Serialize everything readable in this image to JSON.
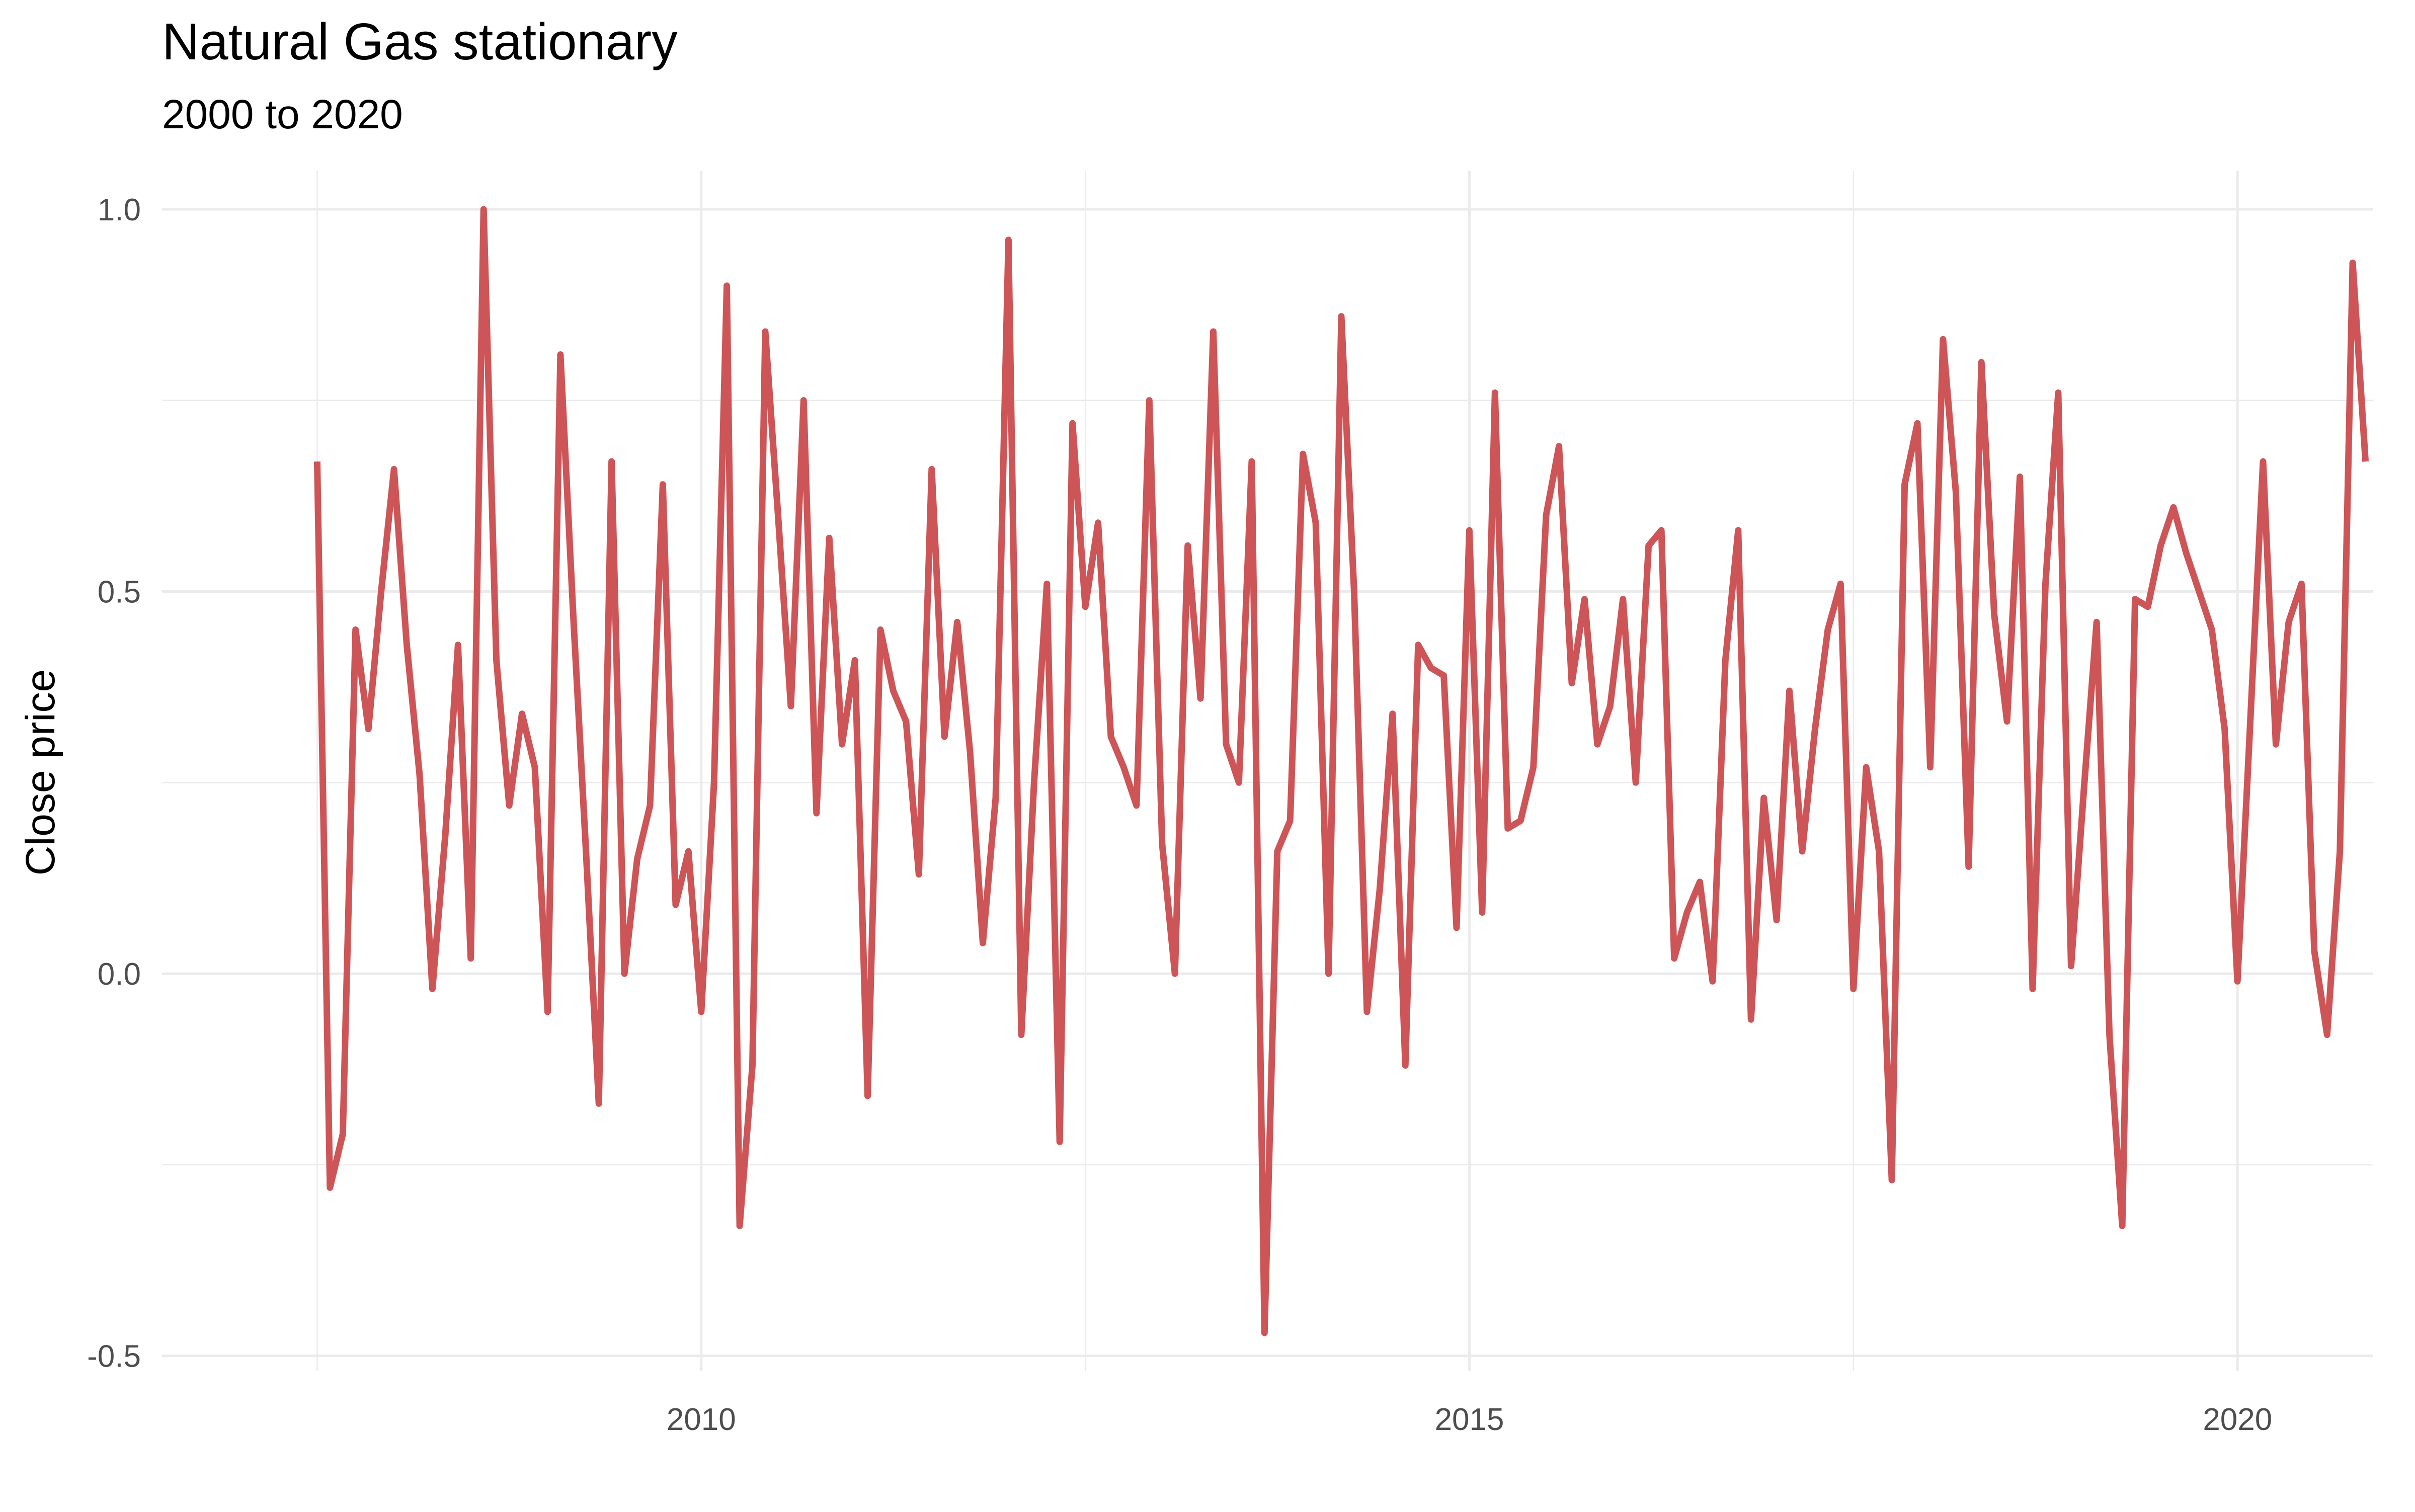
{
  "title": "Natural Gas stationary",
  "subtitle": "2000 to 2020",
  "chart_data": {
    "type": "line",
    "title": "Natural Gas stationary",
    "subtitle": "2000 to 2020",
    "xlabel": "",
    "ylabel": "Close price",
    "xlim": [
      2006.49,
      2020.88
    ],
    "ylim": [
      -0.52,
      1.05
    ],
    "x_ticks": [
      2010,
      2015,
      2020
    ],
    "x_tick_labels": [
      "2010",
      "2015",
      "2020"
    ],
    "y_ticks": [
      -0.5,
      0.0,
      0.5,
      1.0
    ],
    "y_tick_labels": [
      "-0.5",
      "0.0",
      "0.5",
      "1.0"
    ],
    "grid": true,
    "legend": "none",
    "line_color": "#cd5557",
    "x_start": 2007.5,
    "x_step": 0.08333,
    "values": [
      0.67,
      -0.28,
      -0.21,
      0.45,
      0.32,
      0.5,
      0.66,
      0.43,
      0.26,
      -0.02,
      0.18,
      0.43,
      0.02,
      1.0,
      0.41,
      0.22,
      0.34,
      0.27,
      -0.05,
      0.81,
      0.47,
      0.16,
      -0.17,
      0.67,
      0.0,
      0.15,
      0.22,
      0.64,
      0.09,
      0.16,
      -0.05,
      0.25,
      0.9,
      -0.33,
      -0.12,
      0.84,
      0.6,
      0.35,
      0.75,
      0.21,
      0.57,
      0.3,
      0.41,
      -0.16,
      0.45,
      0.37,
      0.33,
      0.13,
      0.66,
      0.31,
      0.46,
      0.29,
      0.04,
      0.23,
      0.96,
      -0.08,
      0.25,
      0.51,
      -0.22,
      0.72,
      0.48,
      0.59,
      0.31,
      0.27,
      0.22,
      0.75,
      0.17,
      0.0,
      0.56,
      0.36,
      0.84,
      0.3,
      0.25,
      0.67,
      -0.47,
      0.16,
      0.2,
      0.68,
      0.59,
      0.0,
      0.86,
      0.5,
      -0.05,
      0.11,
      0.34,
      -0.12,
      0.43,
      0.4,
      0.39,
      0.06,
      0.58,
      0.08,
      0.76,
      0.19,
      0.2,
      0.27,
      0.6,
      0.69,
      0.38,
      0.49,
      0.3,
      0.35,
      0.49,
      0.25,
      0.56,
      0.58,
      0.02,
      0.08,
      0.12,
      -0.01,
      0.41,
      0.58,
      -0.06,
      0.23,
      0.07,
      0.37,
      0.16,
      0.32,
      0.45,
      0.51,
      -0.02,
      0.27,
      0.16,
      -0.27,
      0.64,
      0.72,
      0.27,
      0.83,
      0.63,
      0.14,
      0.8,
      0.47,
      0.33,
      0.65,
      -0.02,
      0.51,
      0.76,
      0.01,
      0.24,
      0.46,
      -0.08,
      -0.33,
      0.49,
      0.48,
      0.56,
      0.61,
      0.55,
      0.5,
      0.45,
      0.32,
      -0.01,
      0.33,
      0.67,
      0.3,
      0.46,
      0.51,
      0.03,
      -0.08,
      0.16,
      0.93,
      0.67
    ]
  }
}
